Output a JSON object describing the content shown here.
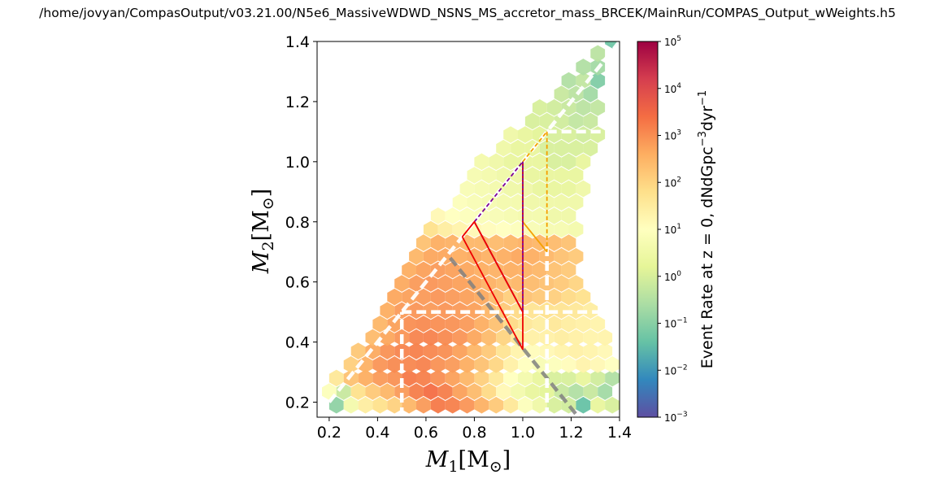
{
  "title": "/home/jovyan/CompasOutput/v03.21.00/N5e6_MassiveWDWD_NSNS_MS_accretor_mass_BRCEK/MainRun/COMPAS_Output_wWeights.h5",
  "chart_data": {
    "type": "hexbin",
    "xlabel_main": "M",
    "xlabel_sub": "1",
    "xlabel_unit": "[M",
    "xlabel_unit_sub": "⊙",
    "xlabel_close": "]",
    "ylabel_main": "M",
    "ylabel_sub": "2",
    "ylabel_unit": "[M",
    "ylabel_unit_sub": "⊙",
    "ylabel_close": "]",
    "xlim": [
      0.15,
      1.4
    ],
    "ylim": [
      0.15,
      1.4
    ],
    "xticks": [
      "0.2",
      "0.4",
      "0.6",
      "0.8",
      "1.0",
      "1.2",
      "1.4"
    ],
    "xtick_values": [
      0.2,
      0.4,
      0.6,
      0.8,
      1.0,
      1.2,
      1.4
    ],
    "yticks": [
      "0.2",
      "0.4",
      "0.6",
      "0.8",
      "1.0",
      "1.2",
      "1.4"
    ],
    "ytick_values": [
      0.2,
      0.4,
      0.6,
      0.8,
      1.0,
      1.2,
      1.4
    ],
    "colorbar": {
      "label": "Event Rate at z = 0, dNdGpc",
      "label_exp1": "−3",
      "label_mid": "dyr",
      "label_exp2": "−1",
      "scale": "log",
      "range": [
        0.001,
        100000
      ],
      "colormap": "Spectral_r",
      "ticks": [
        {
          "value": 0.001,
          "base": "10",
          "exp": "−3"
        },
        {
          "value": 0.01,
          "base": "10",
          "exp": "−2"
        },
        {
          "value": 0.1,
          "base": "10",
          "exp": "−1"
        },
        {
          "value": 1,
          "base": "10",
          "exp": "0"
        },
        {
          "value": 10,
          "base": "10",
          "exp": "1"
        },
        {
          "value": 100,
          "base": "10",
          "exp": "2"
        },
        {
          "value": 1000,
          "base": "10",
          "exp": "3"
        },
        {
          "value": 10000,
          "base": "10",
          "exp": "4"
        },
        {
          "value": 100000,
          "base": "10",
          "exp": "5"
        }
      ]
    },
    "hexbin_rows": [
      {
        "y": 0.19,
        "x_start": 0.23,
        "vals": [
          0.12,
          4,
          30,
          60,
          110,
          300,
          700,
          1800,
          1500,
          800,
          350,
          150,
          40,
          8,
          3,
          1,
          0.8,
          0.04,
          2,
          1,
          0.5
        ]
      },
      {
        "y": 0.235,
        "x_start": 0.2,
        "vals": [
          8,
          0.6,
          60,
          150,
          300,
          700,
          1600,
          2500,
          1600,
          600,
          250,
          80,
          15,
          4,
          2,
          1.5,
          0.6,
          0.3,
          0.6,
          0.2
        ]
      },
      {
        "y": 0.28,
        "x_start": 0.23,
        "vals": [
          40,
          200,
          400,
          700,
          900,
          1800,
          1500,
          1000,
          600,
          300,
          120,
          40,
          10,
          4,
          2,
          1,
          1,
          2,
          0.8,
          0.3,
          0.2
        ]
      },
      {
        "y": 0.325,
        "x_start": 0.29,
        "vals": [
          120,
          350,
          800,
          1100,
          1200,
          1400,
          900,
          700,
          400,
          200,
          90,
          25,
          10,
          6,
          8,
          12,
          20,
          15,
          10
        ]
      },
      {
        "y": 0.37,
        "x_start": 0.32,
        "vals": [
          160,
          450,
          900,
          1300,
          1500,
          1200,
          1000,
          600,
          300,
          150,
          50,
          20,
          12,
          15,
          20,
          25,
          20,
          15
        ]
      },
      {
        "y": 0.415,
        "x_start": 0.38,
        "vals": [
          250,
          500,
          800,
          1300,
          1400,
          1100,
          800,
          500,
          250,
          100,
          40,
          25,
          25,
          30,
          25,
          20,
          20
        ]
      },
      {
        "y": 0.46,
        "x_start": 0.41,
        "vals": [
          300,
          600,
          1000,
          1100,
          1000,
          900,
          700,
          400,
          200,
          80,
          40,
          30,
          40,
          30,
          25,
          20
        ]
      },
      {
        "y": 0.505,
        "x_start": 0.44,
        "vals": [
          400,
          700,
          800,
          700,
          800,
          700,
          600,
          300,
          150,
          80,
          50,
          60,
          50,
          40,
          30
        ]
      },
      {
        "y": 0.55,
        "x_start": 0.47,
        "vals": [
          500,
          600,
          700,
          800,
          700,
          600,
          450,
          250,
          120,
          200,
          150,
          120,
          80,
          60
        ]
      },
      {
        "y": 0.595,
        "x_start": 0.5,
        "vals": [
          450,
          700,
          800,
          700,
          600,
          500,
          350,
          250,
          300,
          250,
          200,
          150,
          100
        ]
      },
      {
        "y": 0.64,
        "x_start": 0.53,
        "vals": [
          400,
          600,
          700,
          600,
          500,
          400,
          350,
          400,
          350,
          300,
          200,
          150
        ]
      },
      {
        "y": 0.685,
        "x_start": 0.56,
        "vals": [
          300,
          500,
          500,
          400,
          450,
          350,
          400,
          500,
          400,
          300,
          200,
          150
        ]
      },
      {
        "y": 0.73,
        "x_start": 0.59,
        "vals": [
          200,
          400,
          350,
          300,
          300,
          250,
          300,
          350,
          300,
          250,
          200
        ]
      },
      {
        "y": 0.775,
        "x_start": 0.62,
        "vals": [
          60,
          30,
          20,
          15,
          12,
          10,
          8,
          6,
          5,
          5,
          4
        ]
      },
      {
        "y": 0.82,
        "x_start": 0.65,
        "vals": [
          15,
          10,
          8,
          7,
          6,
          5,
          4,
          4,
          3,
          3
        ]
      },
      {
        "y": 0.865,
        "x_start": 0.74,
        "vals": [
          8,
          6,
          5,
          4,
          4,
          3,
          3,
          3,
          3
        ]
      },
      {
        "y": 0.91,
        "x_start": 0.77,
        "vals": [
          6,
          5,
          4,
          3,
          3,
          2,
          2,
          2,
          3
        ]
      },
      {
        "y": 0.955,
        "x_start": 0.8,
        "vals": [
          5,
          4,
          3,
          3,
          2,
          2,
          2,
          2
        ]
      },
      {
        "y": 1.0,
        "x_start": 0.83,
        "vals": [
          4,
          3,
          2,
          2,
          2,
          1,
          1,
          2
        ]
      },
      {
        "y": 1.045,
        "x_start": 0.92,
        "vals": [
          3,
          2,
          2,
          1,
          1,
          1,
          1
        ]
      },
      {
        "y": 1.09,
        "x_start": 0.95,
        "vals": [
          3,
          2,
          1.5,
          1,
          1,
          0.8,
          1
        ]
      },
      {
        "y": 1.135,
        "x_start": 1.04,
        "vals": [
          1,
          1,
          0.8,
          0.5,
          0.6
        ]
      },
      {
        "y": 1.18,
        "x_start": 1.07,
        "vals": [
          1,
          0.8,
          0.6,
          0.4,
          0.5
        ]
      },
      {
        "y": 1.225,
        "x_start": 1.16,
        "vals": [
          0.6,
          0.4,
          0.2
        ]
      },
      {
        "y": 1.27,
        "x_start": 1.19,
        "vals": [
          0.3,
          0.5,
          0.08
        ]
      },
      {
        "y": 1.315,
        "x_start": 1.25,
        "vals": [
          0.3,
          0.2
        ]
      },
      {
        "y": 1.36,
        "x_start": 1.31,
        "vals": [
          0.4
        ]
      },
      {
        "y": 1.405,
        "x_start": 1.37,
        "vals": [
          0.05
        ]
      }
    ],
    "hex_dx": 0.06,
    "lines": [
      {
        "name": "equal-mass-line",
        "color": "#ffffff",
        "dash": "12,6",
        "width": 4.5,
        "alpha": 0.95,
        "points": [
          [
            0.2,
            0.2
          ],
          [
            1.4,
            1.4
          ]
        ]
      },
      {
        "name": "total-mass-line",
        "color": "#808080",
        "dash": "12,6",
        "width": 4.5,
        "alpha": 0.85,
        "points": [
          [
            0.7,
            0.68
          ],
          [
            1.25,
            0.13
          ]
        ]
      },
      {
        "name": "white-h-05",
        "color": "#ffffff",
        "dash": "12,6",
        "width": 4.5,
        "alpha": 1,
        "points": [
          [
            0.5,
            0.5
          ],
          [
            1.4,
            0.5
          ]
        ]
      },
      {
        "name": "white-v-05",
        "color": "#ffffff",
        "dash": "12,6",
        "width": 4.5,
        "alpha": 1,
        "points": [
          [
            0.5,
            0.15
          ],
          [
            0.5,
            0.5
          ]
        ]
      },
      {
        "name": "white-h-11",
        "color": "#ffffff",
        "dash": "12,6",
        "width": 4.5,
        "alpha": 1,
        "points": [
          [
            1.1,
            1.1
          ],
          [
            1.4,
            1.1
          ]
        ]
      },
      {
        "name": "white-v-11",
        "color": "#ffffff",
        "dash": "12,6",
        "width": 4.5,
        "alpha": 1,
        "points": [
          [
            1.1,
            0.15
          ],
          [
            1.1,
            0.72
          ]
        ]
      },
      {
        "name": "purple-diag-dashed",
        "color": "#7b0099",
        "dash": "5,3",
        "width": 1.8,
        "alpha": 1,
        "points": [
          [
            0.8,
            0.8
          ],
          [
            1.0,
            1.0
          ]
        ]
      },
      {
        "name": "orange-diag-dashed",
        "color": "#f5a000",
        "dash": "5,3",
        "width": 1.8,
        "alpha": 1,
        "points": [
          [
            1.0,
            1.0
          ],
          [
            1.1,
            1.1
          ]
        ]
      },
      {
        "name": "orange-vert-dashed",
        "color": "#f5a000",
        "dash": "5,3",
        "width": 1.8,
        "alpha": 1,
        "points": [
          [
            1.1,
            1.1
          ],
          [
            1.1,
            0.7
          ]
        ]
      },
      {
        "name": "orange-solid",
        "color": "#f5a000",
        "dash": "",
        "width": 1.8,
        "alpha": 1,
        "points": [
          [
            1.1,
            0.7
          ],
          [
            1.0,
            0.8
          ],
          [
            1.0,
            1.0
          ]
        ]
      },
      {
        "name": "purple-solid",
        "color": "#7b0099",
        "dash": "",
        "width": 1.8,
        "alpha": 1,
        "points": [
          [
            0.8,
            0.8
          ],
          [
            1.0,
            0.5
          ],
          [
            1.0,
            1.0
          ]
        ]
      },
      {
        "name": "red-solid",
        "color": "#ee0000",
        "dash": "",
        "width": 1.8,
        "alpha": 1,
        "points": [
          [
            0.75,
            0.75
          ],
          [
            1.0,
            0.375
          ],
          [
            1.0,
            0.5
          ],
          [
            0.8,
            0.8
          ],
          [
            0.75,
            0.75
          ]
        ]
      },
      {
        "name": "red-dotted-vert",
        "color": "#ee0000",
        "dash": "2,3",
        "width": 1.5,
        "alpha": 1,
        "points": [
          [
            1.0,
            0.5
          ],
          [
            1.0,
            1.0
          ]
        ]
      }
    ]
  }
}
